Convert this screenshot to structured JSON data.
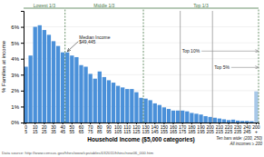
{
  "chart_data": {
    "type": "bar",
    "xlabel": "Household Income ($5,000 categories)",
    "ylabel": "% Families at income",
    "source": "Data source:  http://www.census.gov/hhes/www/cpstables/032011/hhinc/new06_000.htm",
    "categories": [
      "0\n5",
      null,
      "10\n15",
      null,
      "20\n25",
      null,
      "30\n35",
      null,
      "40\n45",
      null,
      "50\n55",
      null,
      "60\n65",
      null,
      "70\n75",
      null,
      "80\n85",
      null,
      "90\n95",
      null,
      "100\n105",
      null,
      "110\n115",
      null,
      "120\n125",
      null,
      "130\n135",
      null,
      "140\n145",
      null,
      "150\n155",
      null,
      "160\n165",
      null,
      "170\n175",
      null,
      "180\n185",
      null,
      "190\n195",
      null,
      "200\n205",
      null,
      "210\n215",
      null,
      "220\n225",
      null,
      "230\n235",
      null,
      "240\n245",
      null,
      "200\n+"
    ],
    "values": [
      3.5,
      4.2,
      6.0,
      6.1,
      5.8,
      5.5,
      5.1,
      4.8,
      4.4,
      4.4,
      4.2,
      4.1,
      3.6,
      3.5,
      3.05,
      2.75,
      3.2,
      2.85,
      2.65,
      2.5,
      2.3,
      2.2,
      2.1,
      2.1,
      1.9,
      1.55,
      1.5,
      1.4,
      1.2,
      1.1,
      0.95,
      0.85,
      0.75,
      0.75,
      0.75,
      0.7,
      0.6,
      0.55,
      0.5,
      0.4,
      0.35,
      0.3,
      0.25,
      0.2,
      0.15,
      0.18,
      0.12,
      0.1,
      0.1,
      0.08,
      1.95
    ],
    "colors": [
      "#4a90d9",
      "#4a90d9",
      "#4a90d9",
      "#4a90d9",
      "#4a90d9",
      "#4a90d9",
      "#4a90d9",
      "#4a90d9",
      "#4a90d9",
      "#4a90d9",
      "#4a90d9",
      "#4a90d9",
      "#4a90d9",
      "#4a90d9",
      "#4a90d9",
      "#4a90d9",
      "#4a90d9",
      "#4a90d9",
      "#4a90d9",
      "#4a90d9",
      "#4a90d9",
      "#4a90d9",
      "#4a90d9",
      "#4a90d9",
      "#4a90d9",
      "#4a90d9",
      "#4a90d9",
      "#4a90d9",
      "#4a90d9",
      "#4a90d9",
      "#4a90d9",
      "#4a90d9",
      "#4a90d9",
      "#4a90d9",
      "#4a90d9",
      "#4a90d9",
      "#4a90d9",
      "#4a90d9",
      "#4a90d9",
      "#4a90d9",
      "#4a90d9",
      "#4a90d9",
      "#4a90d9",
      "#4a90d9",
      "#4a90d9",
      "#4a90d9",
      "#4a90d9",
      "#4a90d9",
      "#4a90d9",
      "#4a90d9",
      "#a8c8e8"
    ],
    "ylim": [
      0,
      7
    ],
    "yticks": [
      {
        "value": 0,
        "label": "0%"
      },
      {
        "value": 1,
        "label": "1%"
      },
      {
        "value": 2,
        "label": "2%"
      },
      {
        "value": 3,
        "label": "3%"
      },
      {
        "value": 4,
        "label": "4%"
      },
      {
        "value": 5,
        "label": "5%"
      },
      {
        "value": 6,
        "label": "6%"
      }
    ],
    "grid": true,
    "annotations": [
      {
        "text": "Lowest 1/3",
        "from": 0,
        "to": 9,
        "color": "#4a7a4a"
      },
      {
        "text": "Middle 1/3",
        "from": 9,
        "to": 26,
        "color": "#4a7a4a"
      },
      {
        "text": "Top 1/3",
        "from": 26,
        "to": 51,
        "color": "#4a7a4a"
      },
      {
        "text": "Median Income\n$49,445",
        "at": 9
      },
      {
        "text": "Top 10%",
        "from": 34,
        "color": "#888888"
      },
      {
        "text": "Top 5%",
        "from": 41,
        "color": "#888888"
      },
      {
        "text": "Ten bars wide: (200, 250)"
      },
      {
        "text": "All incomes ≥ 200"
      }
    ]
  }
}
